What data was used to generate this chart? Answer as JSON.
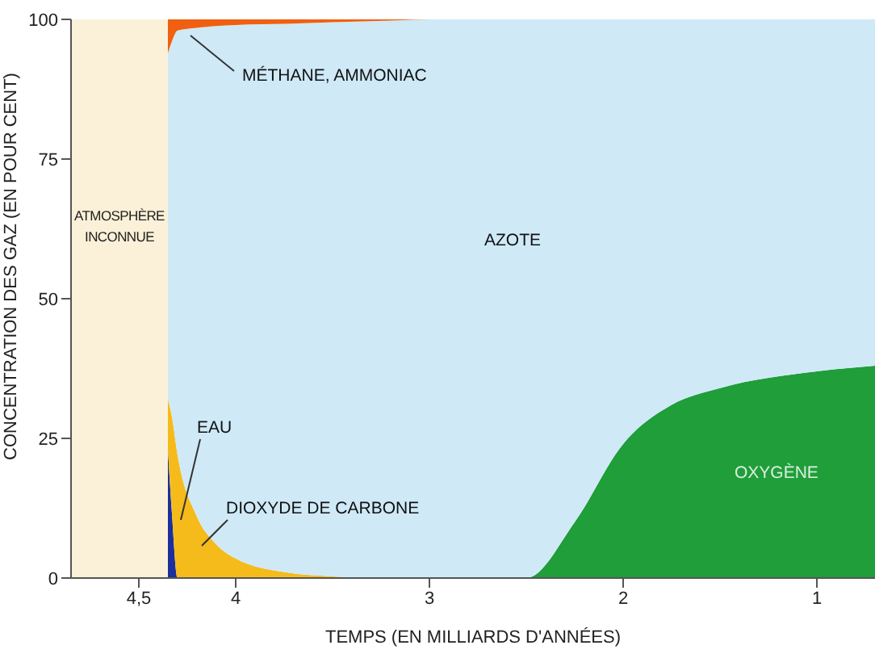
{
  "chart_data": {
    "type": "area",
    "stacked": true,
    "xlabel": "TEMPS (EN MILLIARDS D'ANNÉES)",
    "ylabel": "CONCENTRATION DES GAZ (EN POUR CENT)",
    "x": [
      4.35,
      4.33,
      4.3,
      4.2,
      4.1,
      4.0,
      3.74,
      3.5,
      3.2,
      3.0,
      2.5,
      2.25,
      2.0,
      1.75,
      1.5,
      1.0,
      0.7
    ],
    "series": [
      {
        "name": "EAU",
        "color": "#1c2f9a",
        "values": [
          23,
          12,
          0,
          0,
          0,
          0,
          0,
          0,
          0,
          0,
          0,
          0,
          0,
          0,
          0,
          0,
          0
        ]
      },
      {
        "name": "DIOXYDE DE CARBONE",
        "color": "#f5bb1a",
        "values": [
          9,
          17,
          22,
          11,
          6,
          3.5,
          1,
          0.3,
          0,
          0,
          0,
          0,
          0,
          0,
          0,
          0,
          0
        ]
      },
      {
        "name": "OXYGÈNE",
        "color": "#1f9e3a",
        "values": [
          0,
          0,
          0,
          0,
          0,
          0,
          0,
          0,
          0,
          0,
          0,
          10,
          24,
          31,
          34,
          37,
          38
        ]
      },
      {
        "name": "AZOTE",
        "color": "#cfe9f7",
        "values": [
          62,
          67,
          76,
          87.5,
          92.8,
          95.5,
          98.2,
          99.2,
          99.8,
          100,
          100,
          90,
          76,
          69,
          66,
          63,
          62
        ]
      },
      {
        "name": "MÉTHANE, AMMONIAC",
        "color": "#f06010",
        "values": [
          6,
          4,
          2,
          1.5,
          1.2,
          1,
          0.8,
          0.5,
          0.2,
          0,
          0,
          0,
          0,
          0,
          0,
          0,
          0
        ]
      }
    ],
    "xlim": [
      4.85,
      0.7
    ],
    "xticks": [
      {
        "value": 4.5,
        "label": "4,5"
      },
      4,
      3,
      2,
      1
    ],
    "ylim": [
      0,
      100
    ],
    "yticks": [
      0,
      25,
      50,
      75,
      100
    ],
    "bands": [
      {
        "axis": "x",
        "from": 4.85,
        "to": 4.35,
        "label": "ATMOSPHÈRE INCONNUE",
        "color": "#fbf1d8"
      }
    ]
  }
}
